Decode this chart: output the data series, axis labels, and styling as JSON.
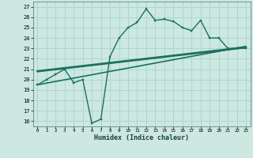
{
  "title": "",
  "xlabel": "Humidex (Indice chaleur)",
  "bg_color": "#cce8e0",
  "grid_color": "#a8d4cc",
  "line_color": "#1a7060",
  "xlim": [
    -0.5,
    23.5
  ],
  "ylim": [
    15.5,
    27.5
  ],
  "xticks": [
    0,
    1,
    2,
    3,
    4,
    5,
    6,
    7,
    8,
    9,
    10,
    11,
    12,
    13,
    14,
    15,
    16,
    17,
    18,
    19,
    20,
    21,
    22,
    23
  ],
  "yticks": [
    16,
    17,
    18,
    19,
    20,
    21,
    22,
    23,
    24,
    25,
    26,
    27
  ],
  "wavy_x": [
    0,
    1,
    2,
    3,
    4,
    5,
    6,
    7,
    8,
    9,
    10,
    11,
    12,
    13,
    14,
    15,
    16,
    17,
    18,
    19,
    20,
    21,
    22,
    23
  ],
  "wavy_y": [
    19.5,
    20.0,
    20.5,
    21.0,
    19.7,
    20.0,
    15.8,
    16.2,
    22.2,
    24.0,
    25.0,
    25.5,
    26.8,
    25.7,
    25.8,
    25.6,
    25.0,
    24.7,
    25.7,
    24.0,
    24.0,
    23.0,
    23.0,
    23.0
  ],
  "line1_x": [
    0,
    23
  ],
  "line1_y": [
    19.5,
    23.2
  ],
  "line2_x": [
    0,
    23
  ],
  "line2_y": [
    20.8,
    23.1
  ]
}
